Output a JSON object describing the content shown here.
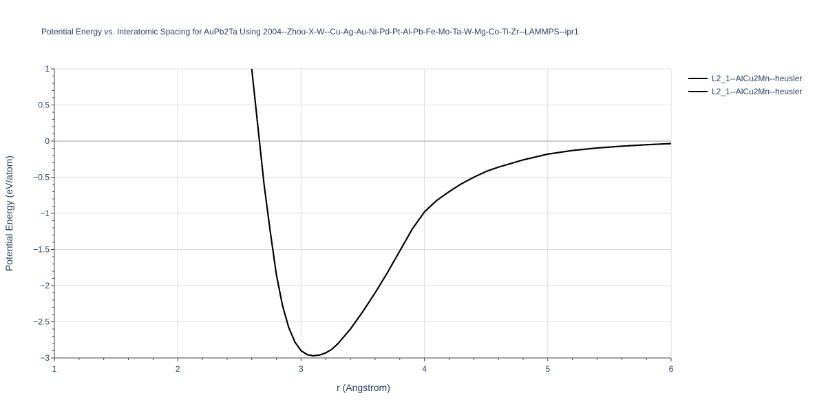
{
  "chart_data": {
    "type": "line",
    "title": "Potential Energy vs. Interatomic Spacing for AuPb2Ta Using 2004--Zhou-X-W--Cu-Ag-Au-Ni-Pd-Pt-Al-Pb-Fe-Mo-Ta-W-Mg-Co-Ti-Zr--LAMMPS--ipr1",
    "xlabel": "r (Angstrom)",
    "ylabel": "Potential Energy (eV/atom)",
    "xlim": [
      1,
      6
    ],
    "ylim": [
      -3,
      1
    ],
    "x_ticks": [
      1,
      2,
      3,
      4,
      5,
      6
    ],
    "x_tick_labels": [
      "1",
      "2",
      "3",
      "4",
      "5",
      "6"
    ],
    "y_ticks": [
      1,
      0.5,
      0,
      -0.5,
      -1,
      -1.5,
      -2,
      -2.5,
      -3
    ],
    "y_tick_labels": [
      "1",
      "0.5",
      "0",
      "−0.5",
      "−1",
      "−1.5",
      "−2",
      "−2.5",
      "−3"
    ],
    "grid": true,
    "legend_position": "top-right",
    "series": [
      {
        "name": "L2_1--AlCu2Mn--heusler",
        "color": "#000000",
        "x": [
          2.6,
          2.65,
          2.7,
          2.75,
          2.8,
          2.85,
          2.9,
          2.95,
          3.0,
          3.05,
          3.1,
          3.15,
          3.2,
          3.25,
          3.3,
          3.4,
          3.5,
          3.6,
          3.7,
          3.8,
          3.9,
          4.0,
          4.1,
          4.2,
          4.3,
          4.4,
          4.5,
          4.6,
          4.7,
          4.8,
          4.9,
          5.0,
          5.2,
          5.4,
          5.6,
          5.8,
          6.0
        ],
        "y": [
          1.0,
          0.2,
          -0.6,
          -1.25,
          -1.85,
          -2.28,
          -2.58,
          -2.78,
          -2.9,
          -2.955,
          -2.97,
          -2.96,
          -2.93,
          -2.88,
          -2.8,
          -2.6,
          -2.36,
          -2.1,
          -1.82,
          -1.52,
          -1.22,
          -0.98,
          -0.82,
          -0.7,
          -0.59,
          -0.5,
          -0.42,
          -0.36,
          -0.31,
          -0.26,
          -0.22,
          -0.18,
          -0.13,
          -0.095,
          -0.07,
          -0.05,
          -0.035
        ]
      },
      {
        "name": "L2_1--AlCu2Mn--heusler",
        "color": "#000000",
        "x": [
          2.6,
          2.65,
          2.7,
          2.75,
          2.8,
          2.85,
          2.9,
          2.95,
          3.0,
          3.05,
          3.1,
          3.15,
          3.2,
          3.25,
          3.3,
          3.4,
          3.5,
          3.6,
          3.7,
          3.8,
          3.9,
          4.0,
          4.1,
          4.2,
          4.3,
          4.4,
          4.5,
          4.6,
          4.7,
          4.8,
          4.9,
          5.0,
          5.2,
          5.4,
          5.6,
          5.8,
          6.0
        ],
        "y": [
          1.0,
          0.2,
          -0.6,
          -1.25,
          -1.85,
          -2.28,
          -2.58,
          -2.78,
          -2.9,
          -2.955,
          -2.97,
          -2.96,
          -2.93,
          -2.88,
          -2.8,
          -2.6,
          -2.36,
          -2.1,
          -1.82,
          -1.52,
          -1.22,
          -0.98,
          -0.82,
          -0.7,
          -0.59,
          -0.5,
          -0.42,
          -0.36,
          -0.31,
          -0.26,
          -0.22,
          -0.18,
          -0.13,
          -0.095,
          -0.07,
          -0.05,
          -0.035
        ]
      }
    ]
  }
}
